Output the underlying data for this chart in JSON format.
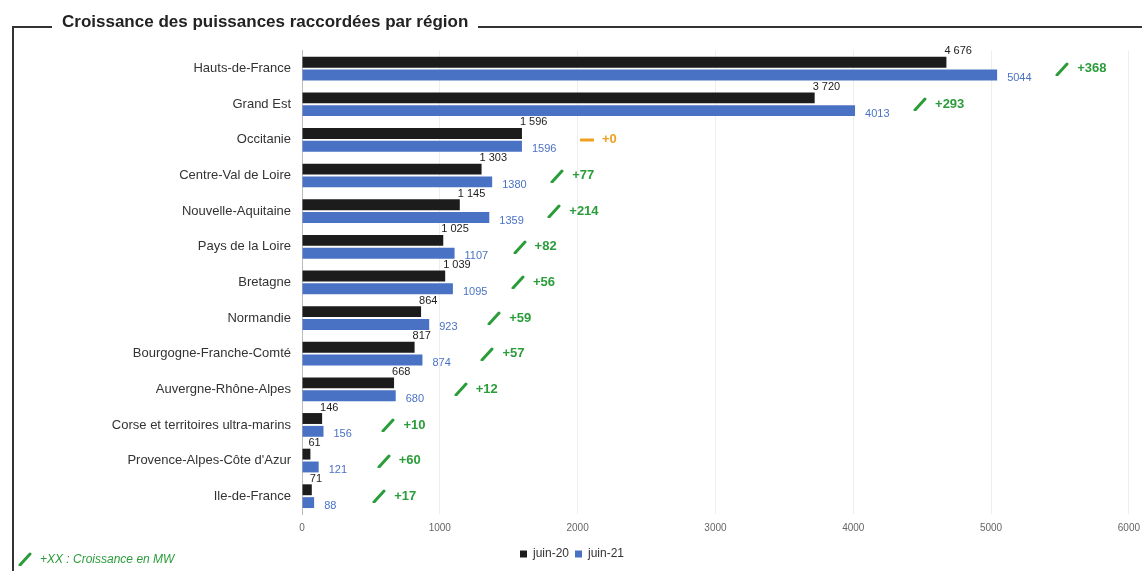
{
  "chart_data": {
    "type": "bar",
    "orientation": "horizontal",
    "title": "Croissance des puissances raccordées par région",
    "categories": [
      "Hauts-de-France",
      "Grand Est",
      "Occitanie",
      "Centre-Val de Loire",
      "Nouvelle-Aquitaine",
      "Pays de la Loire",
      "Bretagne",
      "Normandie",
      "Bourgogne-Franche-Comté",
      "Auvergne-Rhône-Alpes",
      "Corse et territoires ultra-marins",
      "Provence-Alpes-Côte d'Azur",
      "Ile-de-France"
    ],
    "series": [
      {
        "name": "juin-20",
        "color": "#1c1c1c",
        "values": [
          4676,
          3720,
          1596,
          1303,
          1145,
          1025,
          1039,
          864,
          817,
          668,
          146,
          61,
          71
        ],
        "value_labels": [
          "4 676",
          "3 720",
          "1 596",
          "1 303",
          "1 145",
          "1 025",
          "1 039",
          "864",
          "817",
          "668",
          "146",
          "61",
          "71"
        ]
      },
      {
        "name": "juin-21",
        "color": "#4a72c4",
        "values": [
          5044,
          4013,
          1596,
          1380,
          1359,
          1107,
          1095,
          923,
          874,
          680,
          156,
          121,
          88
        ],
        "value_labels": [
          "5044",
          "4013",
          "1596",
          "1380",
          "1359",
          "1107",
          "1095",
          "923",
          "874",
          "680",
          "156",
          "121",
          "88"
        ]
      }
    ],
    "xlim": [
      0,
      6000
    ],
    "xticks": [
      0,
      1000,
      2000,
      3000,
      4000,
      5000,
      6000
    ],
    "grid": "x",
    "legend": "bottom",
    "annotations": [
      "+368",
      "+293",
      "+0",
      "+77",
      "+214",
      "+82",
      "+56",
      "+59",
      "+57",
      "+12",
      "+10",
      "+60",
      "+17",
      "+XX : Croissance en MW"
    ]
  }
}
